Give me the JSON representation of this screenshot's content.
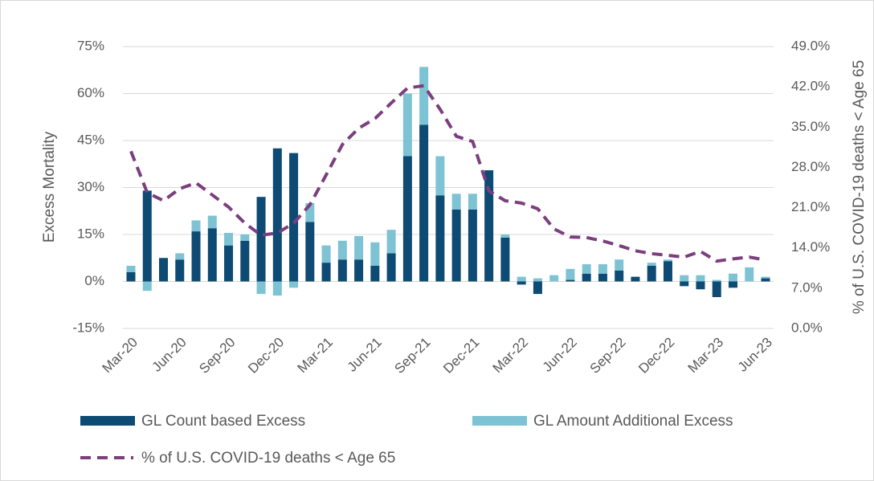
{
  "chart_data": {
    "type": "bar",
    "stacked": true,
    "y_label": "Excess Mortality",
    "y2_label": "% of U.S. COVID-19 deaths < Age 65",
    "categories": [
      "Mar-20",
      null,
      null,
      "Jun-20",
      null,
      null,
      "Sep-20",
      null,
      null,
      "Dec-20",
      null,
      null,
      "Mar-21",
      null,
      null,
      "Jun-21",
      null,
      null,
      "Sep-21",
      null,
      null,
      "Dec-21",
      null,
      null,
      "Mar-22",
      null,
      null,
      "Jun-22",
      null,
      null,
      "Sep-22",
      null,
      null,
      "Dec-22",
      null,
      null,
      "Mar-23",
      null,
      null,
      "Jun-23"
    ],
    "series": [
      {
        "name": "GL Count based Excess",
        "color": "#0d4a74",
        "type": "bar",
        "values": [
          3,
          29,
          7.5,
          7,
          16,
          17,
          11.5,
          13,
          27,
          42.5,
          41,
          19,
          6,
          7,
          7,
          5,
          9,
          40,
          50,
          27.5,
          23,
          23,
          35.5,
          14,
          -1,
          -4,
          0,
          0.5,
          2.5,
          2.5,
          3.5,
          1.5,
          5,
          6.5,
          -1.5,
          -2.5,
          -5,
          -2,
          0,
          1
        ]
      },
      {
        "name": "GL Amount Additional Excess",
        "color": "#7ec3d3",
        "type": "bar",
        "values": [
          2,
          -3,
          0,
          2,
          3.5,
          4,
          4,
          2,
          -4,
          -4.5,
          -2,
          6,
          5.5,
          6,
          7.5,
          7.5,
          7.5,
          20,
          18.5,
          12.5,
          5,
          5,
          0,
          1,
          1.5,
          1,
          2,
          3.5,
          3,
          3,
          3.5,
          0,
          1,
          0.5,
          2,
          2,
          0.5,
          2.5,
          4.5,
          0.5
        ]
      },
      {
        "name": "% of U.S. COVID-19 deaths < Age 65",
        "color": "#7b3f7e",
        "type": "line",
        "dashed": true,
        "axis": "y2",
        "values": [
          30.8,
          23.6,
          22.2,
          24.3,
          25.3,
          23.2,
          21.1,
          18.3,
          16.2,
          16.6,
          18.3,
          21.5,
          26.7,
          32,
          34.8,
          36.5,
          39.2,
          41.8,
          42.2,
          38.1,
          33.4,
          32.5,
          23.9,
          22.2,
          21.8,
          20.8,
          17.3,
          15.9,
          15.8,
          15.2,
          14.4,
          13.5,
          13,
          12.7,
          12.4,
          13.4,
          11.7,
          12.1,
          12.4,
          11.9
        ]
      }
    ],
    "ylim": [
      -15,
      75
    ],
    "yticks": [
      {
        "value": -15,
        "label": "-15%"
      },
      {
        "value": 0,
        "label": "0%"
      },
      {
        "value": 15,
        "label": "15%"
      },
      {
        "value": 30,
        "label": "30%"
      },
      {
        "value": 45,
        "label": "45%"
      },
      {
        "value": 60,
        "label": "60%"
      },
      {
        "value": 75,
        "label": "75%"
      }
    ],
    "y2lim": [
      0,
      49
    ],
    "y2ticks": [
      {
        "value": 0,
        "label": "0.0%"
      },
      {
        "value": 7,
        "label": "7.0%"
      },
      {
        "value": 14,
        "label": "14.0%"
      },
      {
        "value": 21,
        "label": "21.0%"
      },
      {
        "value": 28,
        "label": "28.0%"
      },
      {
        "value": 35,
        "label": "35.0%"
      },
      {
        "value": 42,
        "label": "42.0%"
      },
      {
        "value": 49,
        "label": "49.0%"
      }
    ],
    "grid": true,
    "legend": "bottom"
  }
}
